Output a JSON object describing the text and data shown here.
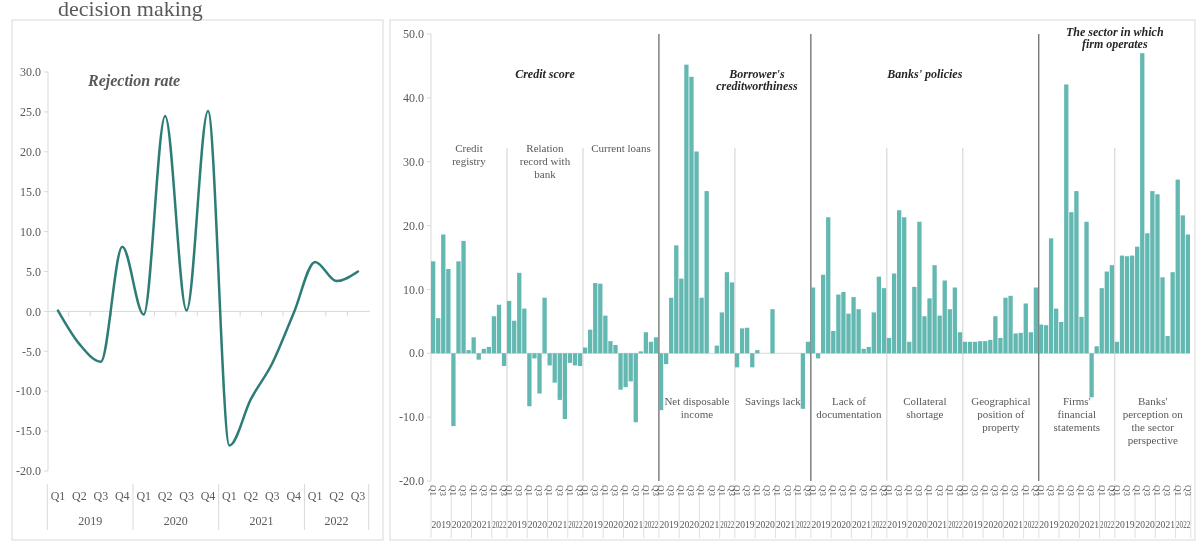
{
  "chart_data": [
    {
      "type": "line",
      "title": "Rejection rate",
      "categories": [
        "Q1",
        "Q2",
        "Q3",
        "Q4",
        "Q1",
        "Q2",
        "Q3",
        "Q4",
        "Q1",
        "Q2",
        "Q3",
        "Q4",
        "Q1",
        "Q2",
        "Q3"
      ],
      "values": [
        0.1,
        -4.1,
        -6.3,
        8.1,
        -0.4,
        24.5,
        0.1,
        25.1,
        -16.8,
        -11.0,
        -6.5,
        -0.2,
        6.2,
        3.8,
        5.0
      ],
      "color": "#2d7d76",
      "ylim": [
        -20,
        30
      ],
      "yticks": [
        {
          "value": -20,
          "label": "-20.0"
        },
        {
          "value": -15,
          "label": "-15.0"
        },
        {
          "value": -10,
          "label": "-10.0"
        },
        {
          "value": -5,
          "label": "-5.0"
        },
        {
          "value": 0,
          "label": "0.0"
        },
        {
          "value": 5,
          "label": "5.0"
        },
        {
          "value": 10,
          "label": "10.0"
        },
        {
          "value": 15,
          "label": "15.0"
        },
        {
          "value": 20,
          "label": "20.0"
        },
        {
          "value": 25,
          "label": "25.0"
        },
        {
          "value": 30,
          "label": "30.0"
        }
      ],
      "annotations": [
        "decision making",
        "2019",
        "2020",
        "2021",
        "2022"
      ]
    },
    {
      "type": "bar",
      "categories": [
        "Q1",
        null,
        "Q3",
        null,
        "Q1",
        null,
        "Q3",
        null,
        "Q1",
        null,
        "Q3",
        null,
        "Q1",
        null,
        "Q3",
        "Q1",
        null,
        "Q3",
        null,
        "Q1",
        null,
        "Q3",
        null,
        "Q1",
        null,
        "Q3",
        null,
        "Q1",
        null,
        "Q3",
        "Q1",
        null,
        "Q3",
        null,
        "Q1",
        null,
        "Q3",
        null,
        "Q1",
        null,
        "Q3",
        null,
        "Q1",
        null,
        "Q3",
        "Q1",
        null,
        "Q3",
        null,
        "Q1",
        null,
        "Q3",
        null,
        "Q1",
        null,
        "Q3",
        null,
        "Q1",
        null,
        "Q3",
        "Q1",
        null,
        "Q3",
        null,
        "Q1",
        null,
        "Q3",
        null,
        "Q1",
        null,
        "Q3",
        null,
        "Q1",
        null,
        "Q3",
        "Q1",
        null,
        "Q3",
        null,
        "Q1",
        null,
        "Q3",
        null,
        "Q1",
        null,
        "Q3",
        null,
        "Q1",
        null,
        "Q3",
        "Q1",
        null,
        "Q3",
        null,
        "Q1",
        null,
        "Q3",
        null,
        "Q1",
        null,
        "Q3",
        null,
        "Q1",
        null,
        "Q3",
        "Q1",
        null,
        "Q3",
        null,
        "Q1",
        null,
        "Q3",
        null,
        "Q1",
        null,
        "Q3",
        null,
        "Q1",
        null,
        "Q3",
        "Q1",
        null,
        "Q3",
        null,
        "Q1",
        null,
        "Q3",
        null,
        "Q1",
        null,
        "Q3",
        null,
        "Q1",
        null,
        "Q3",
        "Q1",
        null,
        "Q3",
        null,
        "Q1",
        null,
        "Q3",
        null,
        "Q1",
        null,
        "Q3",
        null,
        "Q1",
        null,
        "Q3"
      ],
      "values": [
        14.4,
        5.5,
        18.6,
        13.2,
        -11.4,
        14.4,
        17.6,
        0.5,
        2.5,
        -1.0,
        0.7,
        1.0,
        5.8,
        7.6,
        -2.0,
        8.2,
        5.1,
        12.6,
        7.0,
        -8.3,
        -0.8,
        -6.3,
        8.7,
        -1.9,
        -4.6,
        -7.3,
        -10.3,
        -1.5,
        -1.9,
        -2.0,
        0.9,
        3.7,
        11.0,
        10.9,
        5.9,
        1.9,
        1.3,
        -5.7,
        -5.3,
        -4.4,
        -10.8,
        0.3,
        3.3,
        1.8,
        2.5,
        -8.9,
        -1.7,
        8.7,
        16.9,
        11.7,
        45.2,
        43.3,
        31.6,
        8.7,
        25.4,
        0,
        1.2,
        6.4,
        12.7,
        11.1,
        -2.2,
        3.9,
        4.0,
        -2.2,
        0.5,
        0,
        0,
        6.9,
        0,
        0,
        0,
        0,
        0,
        -8.7,
        1.8,
        10.3,
        -0.8,
        12.3,
        21.3,
        3.5,
        9.2,
        9.6,
        6.2,
        8.8,
        6.9,
        0.7,
        1.0,
        6.4,
        12.0,
        10.2,
        2.4,
        12.5,
        22.4,
        21.3,
        1.8,
        10.4,
        20.6,
        5.8,
        8.6,
        13.8,
        5.9,
        11.4,
        6.9,
        10.3,
        3.3,
        1.8,
        1.8,
        1.8,
        1.9,
        1.9,
        2.1,
        5.8,
        2.4,
        8.7,
        9.0,
        3.1,
        3.2,
        7.8,
        3.3,
        10.3,
        4.5,
        4.4,
        18.0,
        7.0,
        4.9,
        42.1,
        22.1,
        25.4,
        5.7,
        20.6,
        -6.9,
        1.1,
        10.2,
        12.8,
        13.8,
        1.8,
        15.3,
        15.2,
        15.3,
        16.7,
        47.0,
        18.8,
        25.4,
        24.9,
        11.9,
        2.7,
        12.7,
        27.2,
        21.6,
        18.6
      ],
      "color": "#64b8b2",
      "ylim": [
        -20,
        50
      ],
      "yticks": [
        {
          "value": -20,
          "label": "-20.0"
        },
        {
          "value": -10,
          "label": "-10.0"
        },
        {
          "value": 0,
          "label": "0.0"
        },
        {
          "value": 10,
          "label": "10.0"
        },
        {
          "value": 20,
          "label": "20.0"
        },
        {
          "value": 30,
          "label": "30.0"
        },
        {
          "value": 40,
          "label": "40.0"
        },
        {
          "value": 50,
          "label": "50.0"
        }
      ],
      "annotations": [
        "Credit score",
        "Borrower's creditworthiness",
        "Banks' policies",
        "The sector in which firm operates",
        "Credit registry",
        "Relation record with bank",
        "Current loans",
        "Net disposable income",
        "Savings lack",
        "Lack of documentation",
        "Collateral shortage",
        "Geographical position of property",
        "Firms' financial statements",
        "Banks' perception on the sector perspective",
        "2019",
        "2020",
        "2021",
        "2022",
        "2019",
        "2020",
        "2021",
        "2022",
        "2019",
        "2020",
        "2021",
        "2022",
        "2019",
        "2020",
        "2021",
        "2022",
        "2019",
        "2020",
        "2021",
        "2022",
        "2019",
        "2020",
        "2021",
        "2022",
        "2019",
        "2020",
        "2021",
        "2022",
        "2019",
        "2020",
        "2021",
        "2022",
        "2019",
        "2020",
        "2021",
        "2022",
        "2019",
        "2020",
        "2021",
        "2022"
      ]
    }
  ]
}
